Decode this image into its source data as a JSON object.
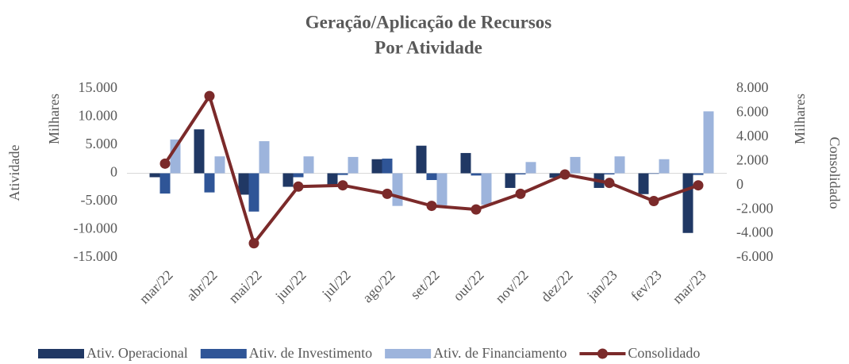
{
  "chart_data": {
    "type": "bar",
    "title": "Geração/Aplicação de Recursos",
    "subtitle": "Por Atividade",
    "y_label": "Atividade",
    "y_unit": "Milhares",
    "y2_label": "Consolidado",
    "y2_unit": "Milhares",
    "categories": [
      "mar/22",
      "abr/22",
      "mai/22",
      "jun/22",
      "jul/22",
      "ago/22",
      "set/22",
      "out/22",
      "nov/22",
      "dez/22",
      "jan/23",
      "fev/23",
      "mar/23"
    ],
    "series": [
      {
        "name": "Ativ. Operacional",
        "type": "bar",
        "color": "#203864",
        "values": [
          -700,
          7800,
          -3800,
          -2400,
          -2400,
          2500,
          4900,
          3600,
          -2600,
          -800,
          -2600,
          -3700,
          -10600
        ]
      },
      {
        "name": "Ativ. de Investimento",
        "type": "bar",
        "color": "#2f5597",
        "values": [
          -3600,
          -3400,
          -6800,
          -700,
          -300,
          2600,
          -1200,
          -400,
          -200,
          -300,
          -200,
          -100,
          -300
        ]
      },
      {
        "name": "Ativ. de Financiamento",
        "type": "bar",
        "color": "#9db4dc",
        "values": [
          6000,
          3000,
          5700,
          3000,
          2900,
          -5800,
          -5700,
          -5600,
          2000,
          2900,
          3000,
          2500,
          11000
        ]
      },
      {
        "name": "Consolidado",
        "type": "line",
        "axis": "y2",
        "color": "#7b2a2a",
        "values": [
          1800,
          7400,
          -4800,
          -100,
          0,
          -700,
          -1700,
          -2000,
          -700,
          900,
          200,
          -1300,
          0
        ]
      }
    ],
    "ylim": [
      -15000,
      15000
    ],
    "yticks": [
      {
        "value": -15000,
        "label": "-15.000"
      },
      {
        "value": -10000,
        "label": "-10.000"
      },
      {
        "value": -5000,
        "label": "-5.000"
      },
      0,
      {
        "value": 5000,
        "label": "5.000"
      },
      {
        "value": 10000,
        "label": "10.000"
      },
      {
        "value": 15000,
        "label": "15.000"
      }
    ],
    "y2lim": [
      -6000,
      8000
    ],
    "y2ticks": [
      {
        "value": -6000,
        "label": "-6.000"
      },
      {
        "value": -4000,
        "label": "-4.000"
      },
      {
        "value": -2000,
        "label": "-2.000"
      },
      0,
      {
        "value": 2000,
        "label": "2.000"
      },
      {
        "value": 4000,
        "label": "4.000"
      },
      {
        "value": 6000,
        "label": "6.000"
      },
      {
        "value": 8000,
        "label": "8.000"
      }
    ],
    "legend": "bottom"
  }
}
